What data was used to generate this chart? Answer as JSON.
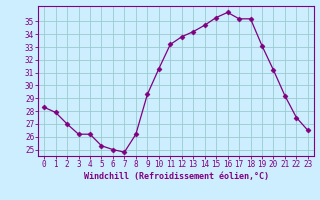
{
  "x": [
    0,
    1,
    2,
    3,
    4,
    5,
    6,
    7,
    8,
    9,
    10,
    11,
    12,
    13,
    14,
    15,
    16,
    17,
    18,
    19,
    20,
    21,
    22,
    23
  ],
  "y": [
    28.3,
    27.9,
    27.0,
    26.2,
    26.2,
    25.3,
    25.0,
    24.8,
    26.2,
    29.3,
    31.3,
    33.2,
    33.8,
    34.2,
    34.7,
    35.3,
    35.7,
    35.2,
    35.2,
    33.1,
    31.2,
    29.2,
    27.5,
    26.5
  ],
  "line_color": "#800080",
  "marker": "D",
  "marker_size": 2.5,
  "bg_color": "#cceeff",
  "grid_color": "#99cccc",
  "xlabel": "Windchill (Refroidissement éolien,°C)",
  "ylim": [
    24.5,
    36.2
  ],
  "xlim": [
    -0.5,
    23.5
  ],
  "yticks": [
    25,
    26,
    27,
    28,
    29,
    30,
    31,
    32,
    33,
    34,
    35
  ],
  "xticks": [
    0,
    1,
    2,
    3,
    4,
    5,
    6,
    7,
    8,
    9,
    10,
    11,
    12,
    13,
    14,
    15,
    16,
    17,
    18,
    19,
    20,
    21,
    22,
    23
  ],
  "axis_color": "#800080",
  "tick_color": "#800080",
  "tick_fontsize": 5.5,
  "xlabel_fontsize": 6.0
}
